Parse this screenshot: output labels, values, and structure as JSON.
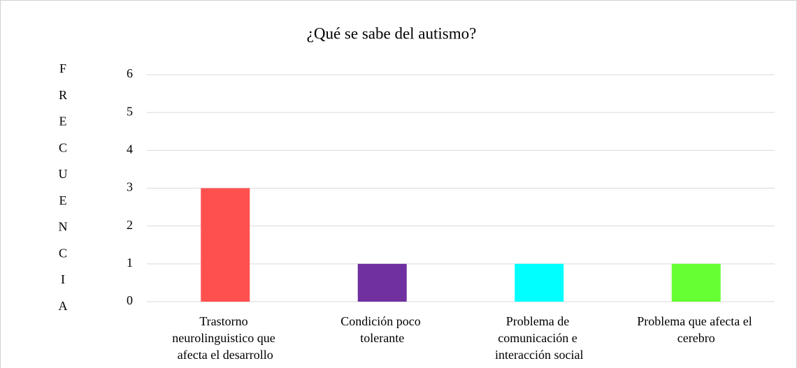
{
  "chart_data": {
    "type": "bar",
    "title": "¿Qué se sabe del autismo?",
    "y_label": "FRECUENCIA",
    "categories": [
      "Trastorno neurolinguistico que afecta el desarrollo",
      "Condición poco tolerante",
      "Problema de comunicación e interacción social",
      "Problema que afecta el cerebro"
    ],
    "values": [
      3,
      1,
      1,
      1
    ],
    "colors": [
      "#ff5050",
      "#7030a0",
      "#00ffff",
      "#66ff33"
    ],
    "ylim": [
      0,
      6
    ],
    "yticks": [
      0,
      1,
      2,
      3,
      4,
      5,
      6
    ],
    "grid": true
  }
}
